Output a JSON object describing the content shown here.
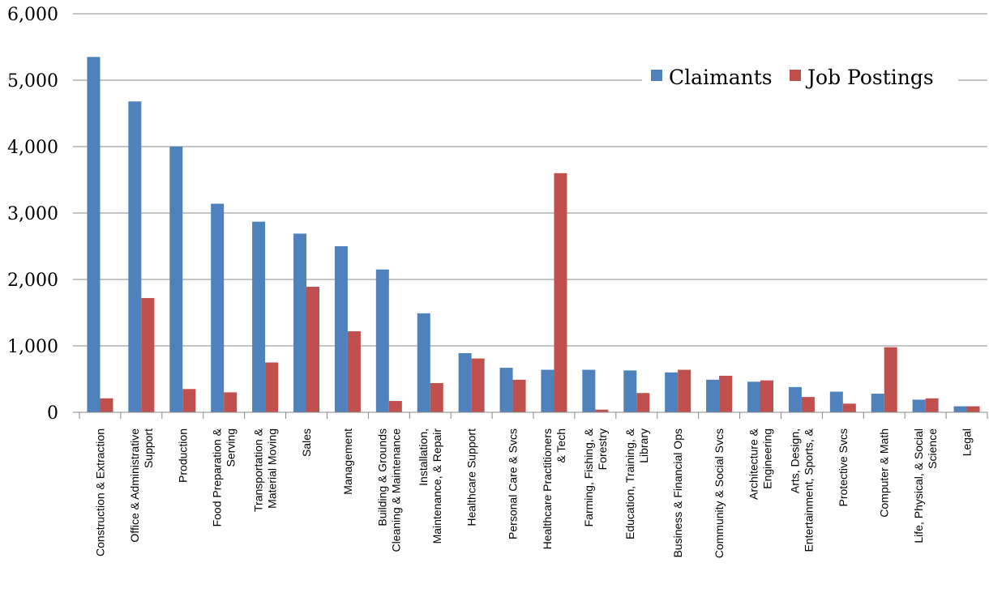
{
  "chart_data": {
    "type": "bar",
    "title": "",
    "xlabel": "",
    "ylabel": "",
    "ylim": [
      0,
      6000
    ],
    "yticks": [
      0,
      1000,
      2000,
      3000,
      4000,
      5000,
      6000
    ],
    "ytick_labels": [
      "0",
      "1,000",
      "2,000",
      "3,000",
      "4,000",
      "5,000",
      "6,000"
    ],
    "grid": true,
    "legend_position": "top-right",
    "categories": [
      "Construction & Extraction",
      "Office & Administrative Support",
      "Production",
      "Food Preparation & Serving",
      "Transportation & Material Moving",
      "Sales",
      "Management",
      "Building & Grounds Cleaning & Maintenance",
      "Installation, Maintenance, & Repair",
      "Healthcare Support",
      "Personal Care & Svcs",
      "Healthcare Practitioners & Tech",
      "Farming, Fishing, & Forestry",
      "Education, Training, & Library",
      "Business & Financial Ops",
      "Community & Social Svcs",
      "Architecture & Engineering",
      "Arts, Design, Entertainment, Sports, &",
      "Protective Svcs",
      "Computer & Math",
      "Life, Physical, & Social Science",
      "Legal"
    ],
    "category_lines": [
      [
        "Construction & Extraction"
      ],
      [
        "Office & Administrative",
        "Support"
      ],
      [
        "Production"
      ],
      [
        "Food Preparation &",
        "Serving"
      ],
      [
        "Transportation &",
        "Material Moving"
      ],
      [
        "Sales"
      ],
      [
        "Management"
      ],
      [
        "Building & Grounds",
        "Cleaning & Maintenance"
      ],
      [
        "Installation,",
        "Maintenance, & Repair"
      ],
      [
        "Healthcare Support"
      ],
      [
        "Personal Care & Svcs"
      ],
      [
        "Healthcare Practitioners",
        "& Tech"
      ],
      [
        "Farming, Fishing, &",
        "Forestry"
      ],
      [
        "Education, Training, &",
        "Library"
      ],
      [
        "Business & Financial Ops"
      ],
      [
        "Community & Social Svcs"
      ],
      [
        "Architecture &",
        "Engineering"
      ],
      [
        "Arts, Design,",
        "Entertainment, Sports, &"
      ],
      [
        "Protective Svcs"
      ],
      [
        "Computer & Math"
      ],
      [
        "Life, Physical, & Social",
        "Science"
      ],
      [
        "Legal"
      ]
    ],
    "series": [
      {
        "name": "Claimants",
        "color": "#4f81bd",
        "values": [
          5350,
          4680,
          4000,
          3140,
          2870,
          2690,
          2500,
          2150,
          1490,
          890,
          670,
          640,
          640,
          630,
          600,
          490,
          460,
          380,
          310,
          280,
          190,
          90
        ]
      },
      {
        "name": "Job Postings",
        "color": "#c0504d",
        "values": [
          210,
          1720,
          350,
          300,
          750,
          1890,
          1220,
          170,
          440,
          810,
          490,
          3600,
          40,
          290,
          640,
          550,
          480,
          230,
          130,
          980,
          210,
          90
        ]
      }
    ]
  }
}
